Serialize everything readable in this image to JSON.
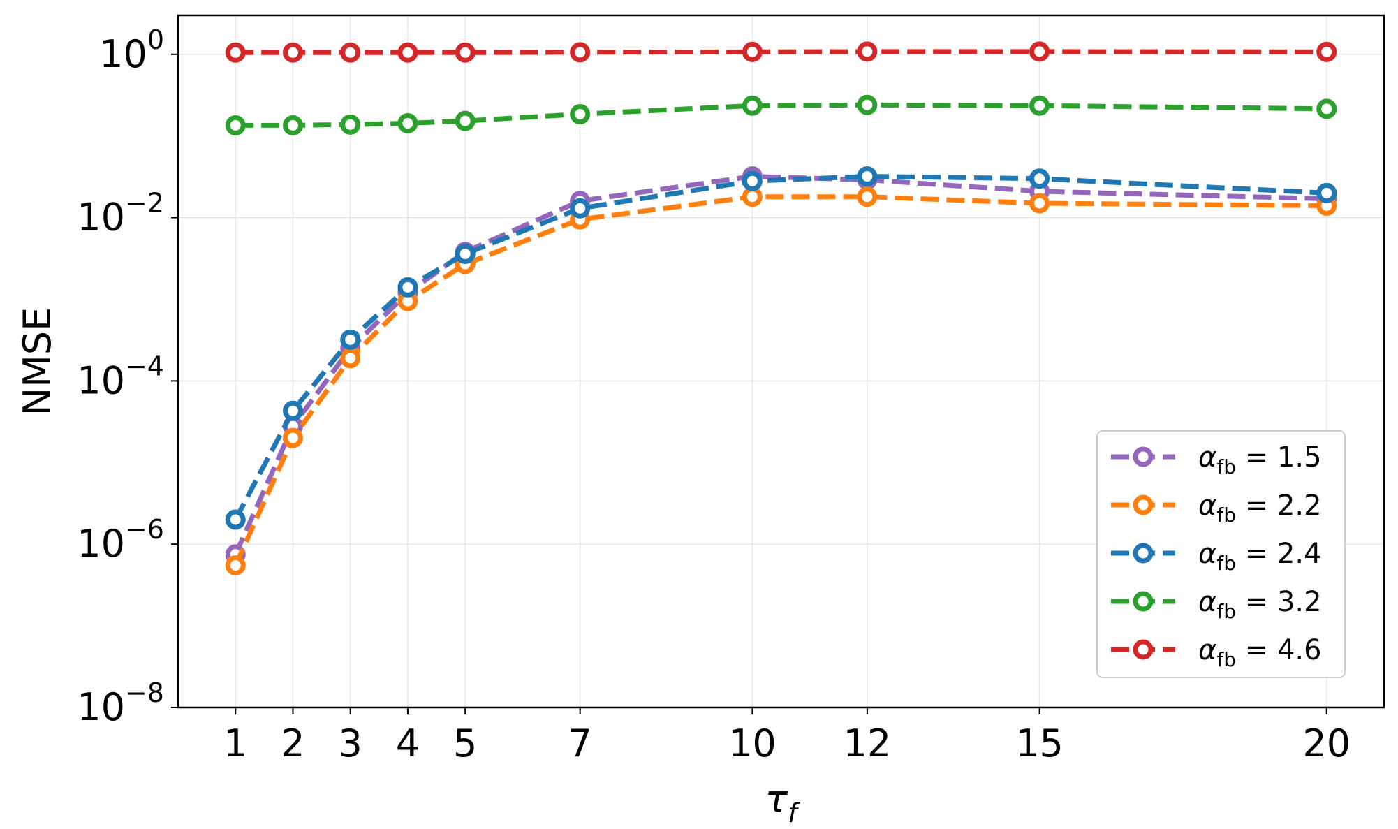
{
  "chart_data": {
    "type": "line",
    "xlabel": "τ",
    "xlabel_sub": "f",
    "ylabel": "NMSE",
    "yscale": "log",
    "ylim": [
      1e-08,
      3
    ],
    "xlim": [
      0,
      21
    ],
    "x": [
      1,
      2,
      3,
      4,
      5,
      7,
      10,
      12,
      15,
      20
    ],
    "xticks": [
      "1",
      "2",
      "3",
      "4",
      "5",
      "7",
      "10",
      "12",
      "15",
      "20"
    ],
    "yticks": [
      {
        "base": "10",
        "exp": "0",
        "value": 1
      },
      {
        "base": "10",
        "exp": "−2",
        "value": 0.01
      },
      {
        "base": "10",
        "exp": "−4",
        "value": 0.0001
      },
      {
        "base": "10",
        "exp": "−6",
        "value": 1e-06
      },
      {
        "base": "10",
        "exp": "−8",
        "value": 1e-08
      }
    ],
    "grid": true,
    "legend_position": "lower-right",
    "line_style": "dashed",
    "marker": "hollow-circle",
    "series": [
      {
        "name": "α_fb = 1.5",
        "greek": "α",
        "sub": "fb",
        "eq": " = 1.5",
        "color": "#9467bd",
        "values": [
          7.5e-07,
          2.8e-05,
          0.00025,
          0.0012,
          0.0038,
          0.016,
          0.032,
          0.029,
          0.021,
          0.017
        ]
      },
      {
        "name": "α_fb = 2.2",
        "greek": "α",
        "sub": "fb",
        "eq": " = 2.2",
        "color": "#ff7f0e",
        "values": [
          5.5e-07,
          2e-05,
          0.00019,
          0.00095,
          0.0027,
          0.0095,
          0.018,
          0.018,
          0.015,
          0.014
        ]
      },
      {
        "name": "α_fb = 2.4",
        "greek": "α",
        "sub": "fb",
        "eq": " = 2.4",
        "color": "#1f77b4",
        "values": [
          2e-06,
          4.3e-05,
          0.00032,
          0.0014,
          0.0036,
          0.013,
          0.028,
          0.032,
          0.03,
          0.02
        ]
      },
      {
        "name": "α_fb = 3.2",
        "greek": "α",
        "sub": "fb",
        "eq": " = 3.2",
        "color": "#2ca02c",
        "values": [
          0.135,
          0.135,
          0.138,
          0.143,
          0.153,
          0.185,
          0.235,
          0.24,
          0.235,
          0.215
        ]
      },
      {
        "name": "α_fb = 4.6",
        "greek": "α",
        "sub": "fb",
        "eq": " = 4.6",
        "color": "#d62728",
        "values": [
          1.05,
          1.05,
          1.05,
          1.05,
          1.05,
          1.06,
          1.07,
          1.08,
          1.08,
          1.07
        ]
      }
    ]
  }
}
